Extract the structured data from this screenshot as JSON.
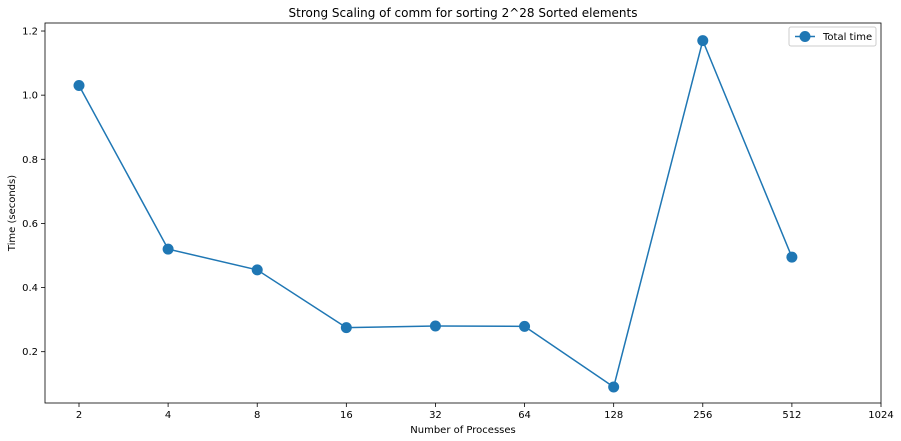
{
  "chart_data": {
    "type": "line",
    "title": "Strong Scaling of comm for sorting 2^28 Sorted elements",
    "xlabel": "Number of Processes",
    "ylabel": "Time (seconds)",
    "x_scale": "log2",
    "x_ticks": [
      "2",
      "4",
      "8",
      "16",
      "32",
      "64",
      "128",
      "256",
      "512",
      "1024"
    ],
    "y_ticks": [
      "0.2",
      "0.4",
      "0.6",
      "0.8",
      "1.0",
      "1.2"
    ],
    "ylim": [
      0.04,
      1.225
    ],
    "grid": false,
    "legend_position": "top-right",
    "series": [
      {
        "name": "Total time",
        "color": "#1f77b4",
        "marker": "circle",
        "x": [
          2,
          4,
          8,
          16,
          32,
          64,
          128,
          256,
          512
        ],
        "y": [
          1.03,
          0.52,
          0.455,
          0.275,
          0.28,
          0.279,
          0.09,
          1.17,
          0.495
        ]
      }
    ]
  }
}
